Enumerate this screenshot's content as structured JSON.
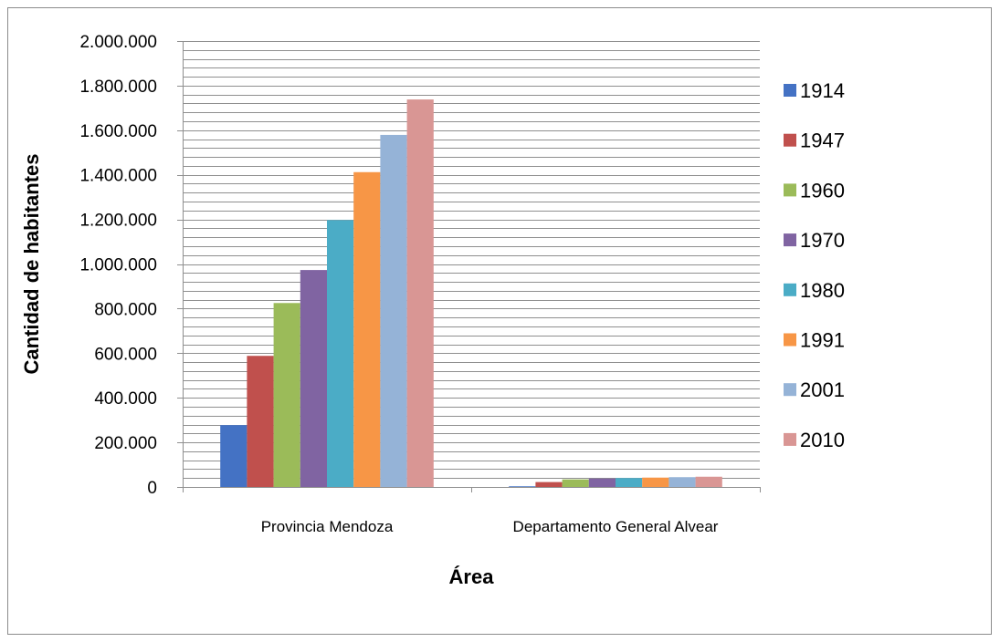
{
  "chart_data": {
    "type": "bar",
    "title": "",
    "xlabel": "Área",
    "ylabel": "Cantidad de habitantes",
    "categories": [
      "Provincia Mendoza",
      "Departamento General Alvear"
    ],
    "ylim": [
      0,
      2000000
    ],
    "yticks": [
      0,
      200000,
      400000,
      600000,
      800000,
      1000000,
      1200000,
      1400000,
      1600000,
      1800000,
      2000000
    ],
    "ytick_labels": [
      "0",
      "200.000",
      "400.000",
      "600.000",
      "800.000",
      "1.000.000",
      "1.200.000",
      "1.400.000",
      "1.600.000",
      "1.800.000",
      "2.000.000"
    ],
    "grid": "horizontal, minor every 40.000",
    "legend_position": "right",
    "series": [
      {
        "name": "1914",
        "color": "#4472c4",
        "values": [
          277500,
          3000
        ]
      },
      {
        "name": "1947",
        "color": "#c0504d",
        "values": [
          588000,
          22000
        ]
      },
      {
        "name": "1960",
        "color": "#9bbb59",
        "values": [
          825000,
          34000
        ]
      },
      {
        "name": "1970",
        "color": "#8064a2",
        "values": [
          973000,
          38000
        ]
      },
      {
        "name": "1980",
        "color": "#4bacc6",
        "values": [
          1197000,
          40000
        ]
      },
      {
        "name": "1991",
        "color": "#f79646",
        "values": [
          1412000,
          42000
        ]
      },
      {
        "name": "2001",
        "color": "#95b3d7",
        "values": [
          1579000,
          44000
        ]
      },
      {
        "name": "2010",
        "color": "#d99694",
        "values": [
          1738000,
          46000
        ]
      }
    ]
  }
}
